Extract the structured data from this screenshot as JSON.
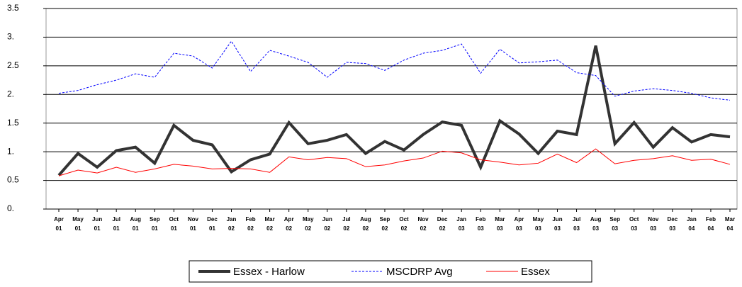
{
  "chart_data": {
    "type": "line",
    "categories": [
      "Apr 01",
      "May 01",
      "Jun 01",
      "Jul 01",
      "Aug 01",
      "Sep 01",
      "Oct 01",
      "Nov 01",
      "Dec 01",
      "Jan 02",
      "Feb 02",
      "Mar 02",
      "Apr 02",
      "May 02",
      "Jun 02",
      "Jul 02",
      "Aug 02",
      "Sep 02",
      "Oct 02",
      "Nov 02",
      "Dec 02",
      "Jan 03",
      "Feb 03",
      "Mar 03",
      "Apr 03",
      "May 03",
      "Jun 03",
      "Jul 03",
      "Aug 03",
      "Sep 03",
      "Oct 03",
      "Nov 03",
      "Dec 03",
      "Jan 04",
      "Feb 04",
      "Mar 04"
    ],
    "series": [
      {
        "name": "Essex - Harlow",
        "color": "#333333",
        "values": [
          0.59,
          0.97,
          0.73,
          1.02,
          1.08,
          0.8,
          1.46,
          1.2,
          1.12,
          0.65,
          0.86,
          0.96,
          1.51,
          1.14,
          1.2,
          1.3,
          0.97,
          1.18,
          1.03,
          1.3,
          1.52,
          1.46,
          0.73,
          1.54,
          1.31,
          0.97,
          1.36,
          1.3,
          2.85,
          1.14,
          1.51,
          1.08,
          1.42,
          1.17,
          1.3,
          1.26
        ]
      },
      {
        "name": "MSCDRP Avg",
        "color": "#0000ff",
        "values": [
          2.02,
          2.07,
          2.17,
          2.25,
          2.36,
          2.3,
          2.72,
          2.67,
          2.46,
          2.93,
          2.4,
          2.77,
          2.67,
          2.56,
          2.3,
          2.56,
          2.54,
          2.42,
          2.6,
          2.72,
          2.77,
          2.88,
          2.37,
          2.79,
          2.55,
          2.57,
          2.6,
          2.38,
          2.33,
          1.97,
          2.06,
          2.1,
          2.07,
          2.02,
          1.94,
          1.9
        ]
      },
      {
        "name": "Essex",
        "color": "#ff0000",
        "values": [
          0.58,
          0.68,
          0.63,
          0.73,
          0.64,
          0.7,
          0.78,
          0.75,
          0.7,
          0.71,
          0.7,
          0.64,
          0.91,
          0.86,
          0.9,
          0.88,
          0.74,
          0.77,
          0.84,
          0.89,
          1.01,
          0.98,
          0.86,
          0.82,
          0.77,
          0.8,
          0.96,
          0.81,
          1.05,
          0.79,
          0.85,
          0.88,
          0.93,
          0.85,
          0.87,
          0.78
        ]
      }
    ],
    "ylim": [
      0,
      3.5
    ],
    "yticks": [
      {
        "value": 0,
        "label": "0."
      },
      0.5,
      {
        "value": 1,
        "label": "1."
      },
      1.5,
      {
        "value": 2,
        "label": "2."
      },
      2.5,
      {
        "value": 3,
        "label": "3."
      },
      3.5
    ],
    "grid": true,
    "legend": "bottom"
  }
}
